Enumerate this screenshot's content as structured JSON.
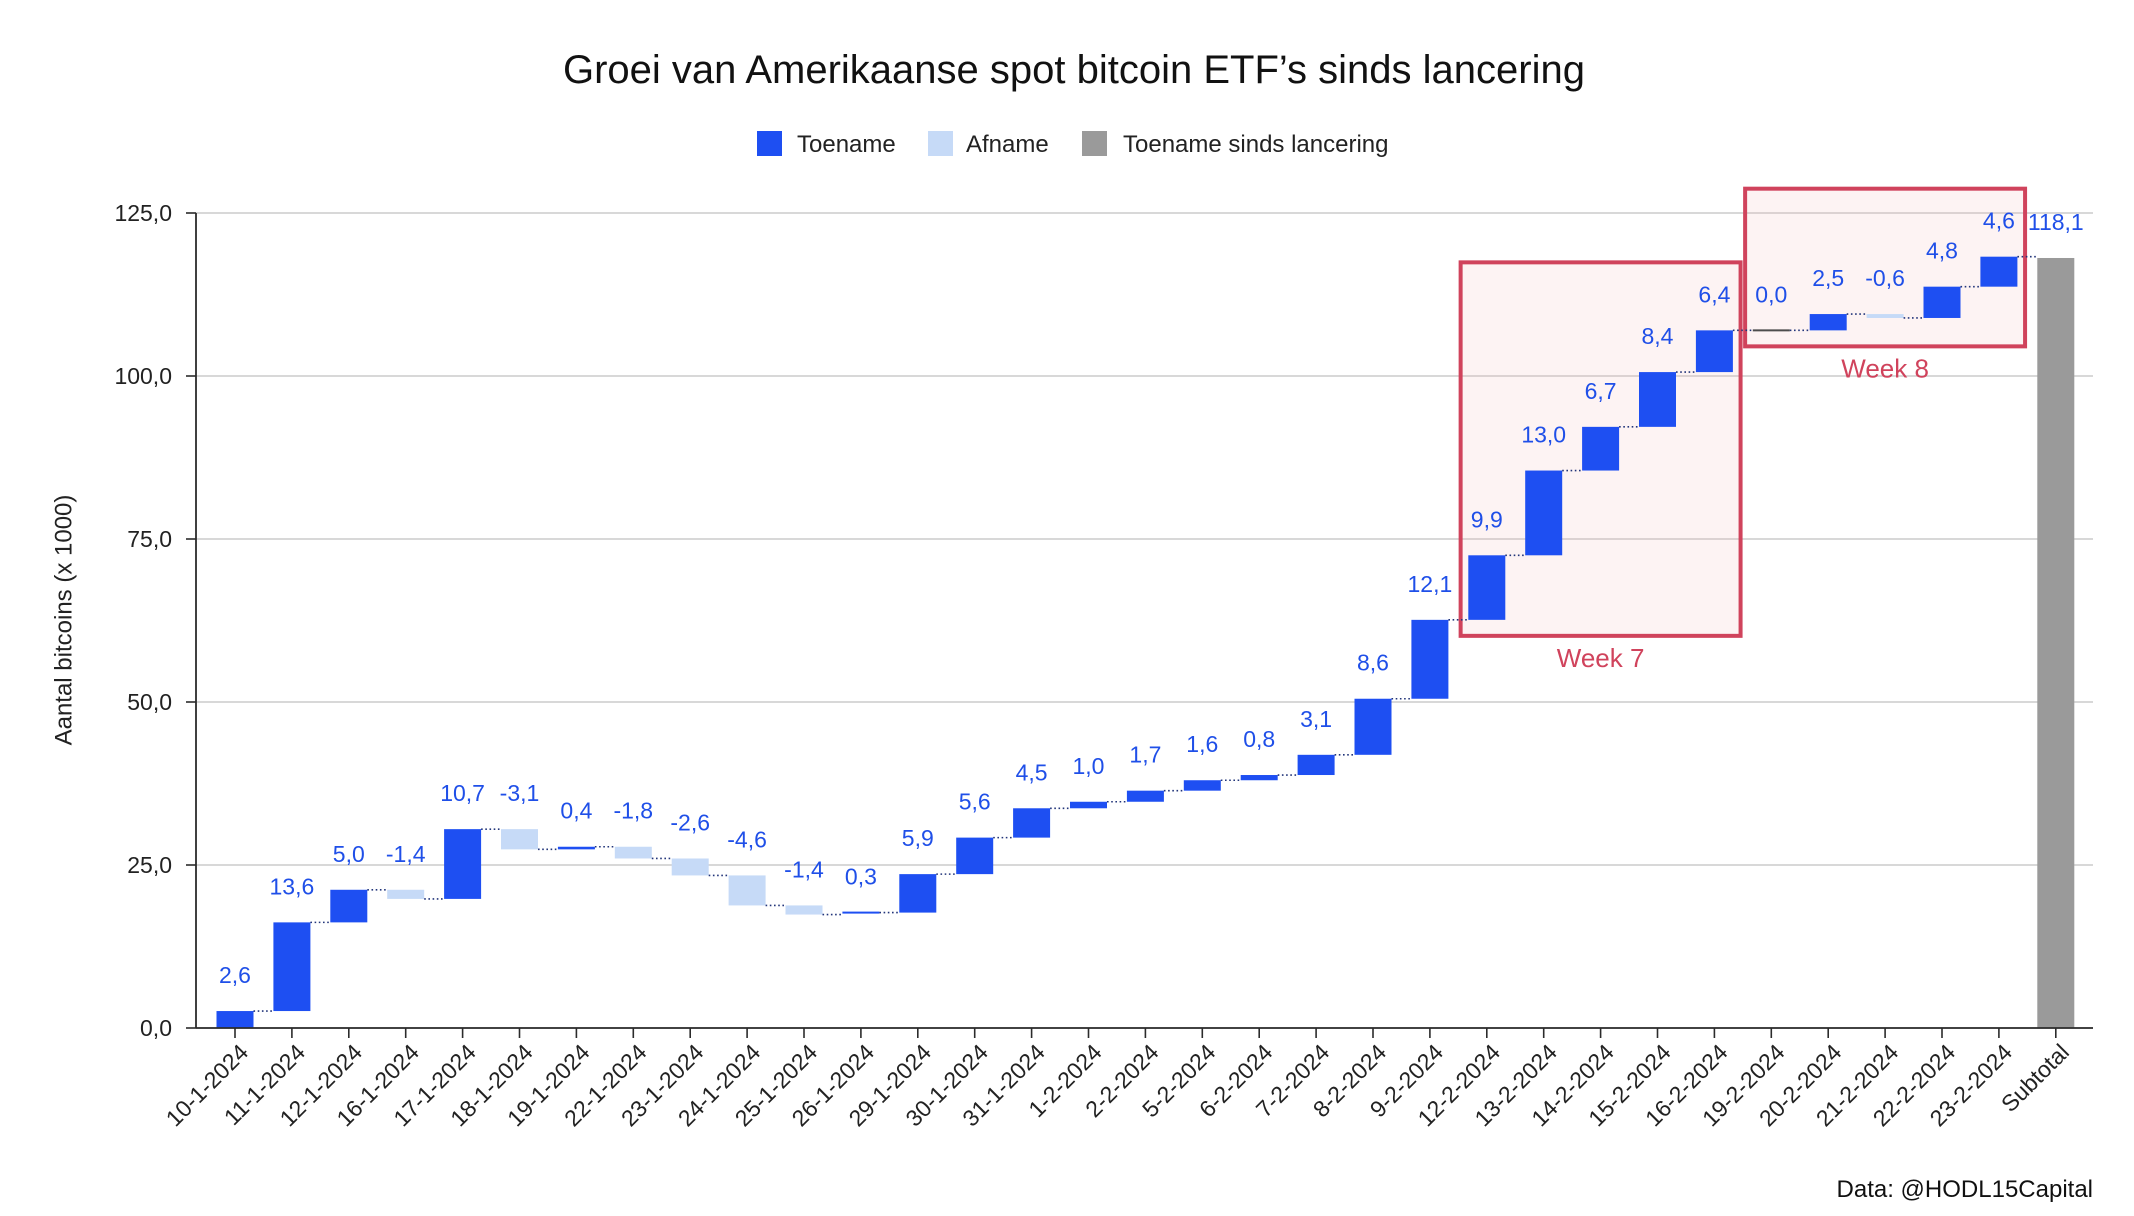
{
  "chart_data": {
    "type": "bar",
    "title": "Groei van Amerikaanse spot bitcoin ETF’s sinds lancering",
    "xlabel": "",
    "ylabel": "Aantal bitcoins (x 1000)",
    "ylim": [
      0,
      125
    ],
    "yticks": [
      0,
      25,
      50,
      75,
      100,
      125
    ],
    "ytick_labels": [
      "0,0",
      "25,0",
      "50,0",
      "75,0",
      "100,0",
      "125,0"
    ],
    "grid": true,
    "legend_position": "top",
    "legend": [
      {
        "label": "Toename",
        "color": "#1e4ff2"
      },
      {
        "label": "Afname",
        "color": "#c6daf7"
      },
      {
        "label": "Toename sinds lancering",
        "color": "#9a9a9a"
      }
    ],
    "categories": [
      "10-1-2024",
      "11-1-2024",
      "12-1-2024",
      "16-1-2024",
      "17-1-2024",
      "18-1-2024",
      "19-1-2024",
      "22-1-2024",
      "23-1-2024",
      "24-1-2024",
      "25-1-2024",
      "26-1-2024",
      "29-1-2024",
      "30-1-2024",
      "31-1-2024",
      "1-2-2024",
      "2-2-2024",
      "5-2-2024",
      "6-2-2024",
      "7-2-2024",
      "8-2-2024",
      "9-2-2024",
      "12-2-2024",
      "13-2-2024",
      "14-2-2024",
      "15-2-2024",
      "16-2-2024",
      "19-2-2024",
      "20-2-2024",
      "21-2-2024",
      "22-2-2024",
      "23-2-2024"
    ],
    "values": [
      2.6,
      13.6,
      5.0,
      -1.4,
      10.7,
      -3.1,
      0.4,
      -1.8,
      -2.6,
      -4.6,
      -1.4,
      0.3,
      5.9,
      5.6,
      4.5,
      1.0,
      1.7,
      1.6,
      0.8,
      3.1,
      8.6,
      12.1,
      9.9,
      13.0,
      6.7,
      8.4,
      6.4,
      0.0,
      2.5,
      -0.6,
      4.8,
      4.6
    ],
    "value_labels": [
      "2,6",
      "13,6",
      "5,0",
      "-1,4",
      "10,7",
      "-3,1",
      "0,4",
      "-1,8",
      "-2,6",
      "-4,6",
      "-1,4",
      "0,3",
      "5,9",
      "5,6",
      "4,5",
      "1,0",
      "1,7",
      "1,6",
      "0,8",
      "3,1",
      "8,6",
      "12,1",
      "9,9",
      "13,0",
      "6,7",
      "8,4",
      "6,4",
      "0,0",
      "2,5",
      "-0,6",
      "4,8",
      "4,6"
    ],
    "total": {
      "category": "Subtotal",
      "value": 118.1,
      "value_label": "118,1"
    },
    "data_label_color": "#1f4fe8",
    "annotations": [
      {
        "label": "Week 7",
        "from": "12-2-2024",
        "to": "16-2-2024",
        "color": "#d0435c"
      },
      {
        "label": "Week 8",
        "from": "19-2-2024",
        "to": "23-2-2024",
        "color": "#d0435c"
      }
    ],
    "source": "Data: @HODL15Capital"
  }
}
